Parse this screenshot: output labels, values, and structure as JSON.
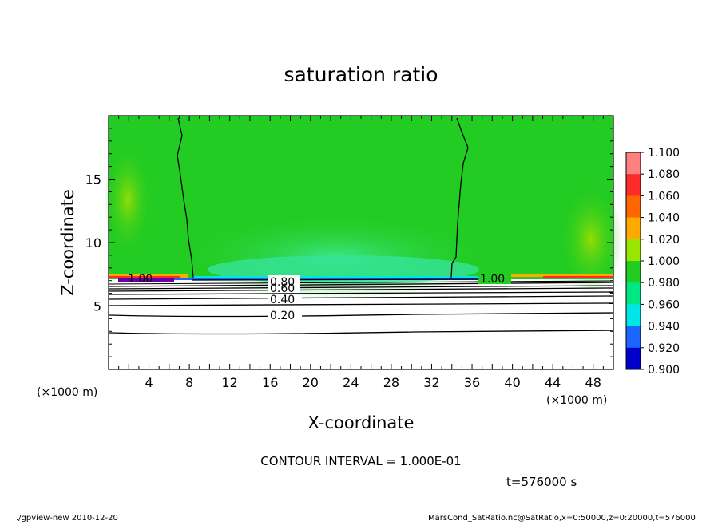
{
  "chart_data": {
    "type": "heatmap",
    "title": "saturation ratio",
    "xlabel": "X-coordinate",
    "ylabel": "Z-coordinate",
    "x_unit": "(×1000 m)",
    "y_unit": "(×1000 m)",
    "xlim": [
      0,
      50
    ],
    "ylim": [
      0,
      20
    ],
    "x_ticks": [
      "4",
      "8",
      "12",
      "16",
      "20",
      "24",
      "28",
      "32",
      "36",
      "40",
      "44",
      "48"
    ],
    "y_ticks": [
      "5",
      "10",
      "15"
    ],
    "colorbar": {
      "levels": [
        "1.100",
        "1.080",
        "1.060",
        "1.040",
        "1.020",
        "1.000",
        "0.980",
        "0.960",
        "0.940",
        "0.920",
        "0.900"
      ],
      "colors": [
        "#ff8080",
        "#ff2a2a",
        "#ff6600",
        "#ffaa00",
        "#99e600",
        "#22cc22",
        "#00e680",
        "#00e6e6",
        "#1a66ff",
        "#0000cc",
        "#6600aa"
      ]
    },
    "contour_labels": [
      "1.00",
      "1.00",
      "0.80",
      "0.60",
      "0.40",
      "0.20"
    ],
    "contour_interval_text": "CONTOUR INTERVAL = 1.000E-01",
    "time_text": "t=576000 s"
  },
  "footer": {
    "left": "./gpview-new  2010-12-20",
    "right": "MarsCond_SatRatio.nc@SatRatio,x=0:50000,z=0:20000,t=576000"
  }
}
